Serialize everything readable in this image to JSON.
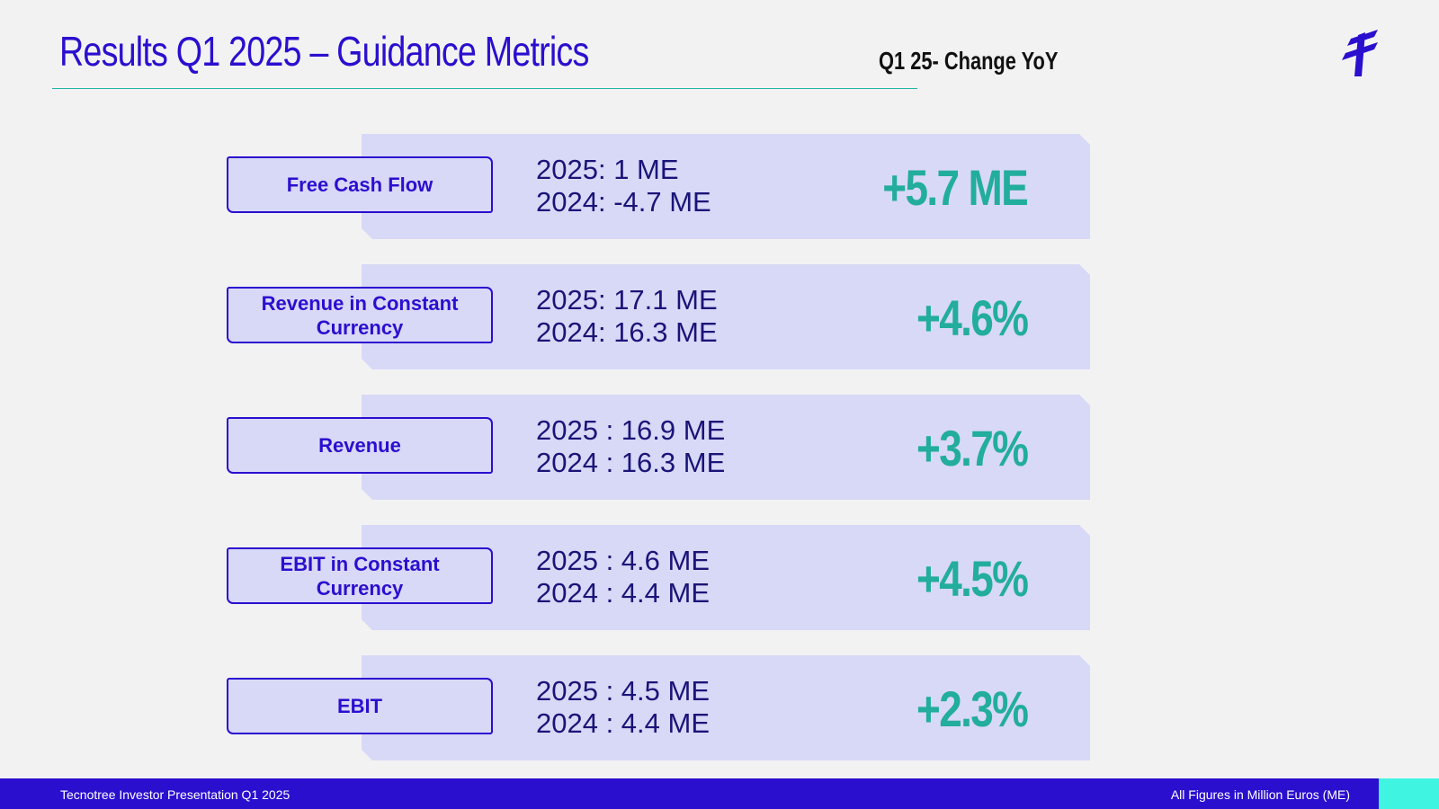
{
  "slide": {
    "title": "Results Q1 2025 – Guidance Metrics",
    "subheading": "Q1 25- Change YoY",
    "logo_icon": "tecnotree-logo-icon"
  },
  "metrics": [
    {
      "label": "Free Cash Flow",
      "line_2025": "2025: 1 ME",
      "line_2024": "2024: -4.7 ME",
      "change": "+5.7 ME"
    },
    {
      "label": "Revenue in Constant Currency",
      "line_2025": "2025: 17.1 ME",
      "line_2024": "2024: 16.3 ME",
      "change": "+4.6%"
    },
    {
      "label": "Revenue",
      "line_2025": "2025 : 16.9 ME",
      "line_2024": "2024 : 16.3 ME",
      "change": "+3.7%"
    },
    {
      "label": "EBIT in Constant Currency",
      "line_2025": "2025 : 4.6 ME",
      "line_2024": "2024 : 4.4 ME",
      "change": "+4.5%"
    },
    {
      "label": "EBIT",
      "line_2025": "2025 : 4.5 ME",
      "line_2024": "2024 : 4.4 ME",
      "change": "+2.3%"
    }
  ],
  "footer": {
    "left": "Tecnotree Investor Presentation Q1 2025",
    "right": "All Figures in Million Euros (ME)"
  },
  "colors": {
    "brand_blue": "#2a0fcf",
    "change_teal": "#22ad9c",
    "panel_lavender": "#d8d8f7",
    "accent_cyan": "#3ff5e2"
  }
}
